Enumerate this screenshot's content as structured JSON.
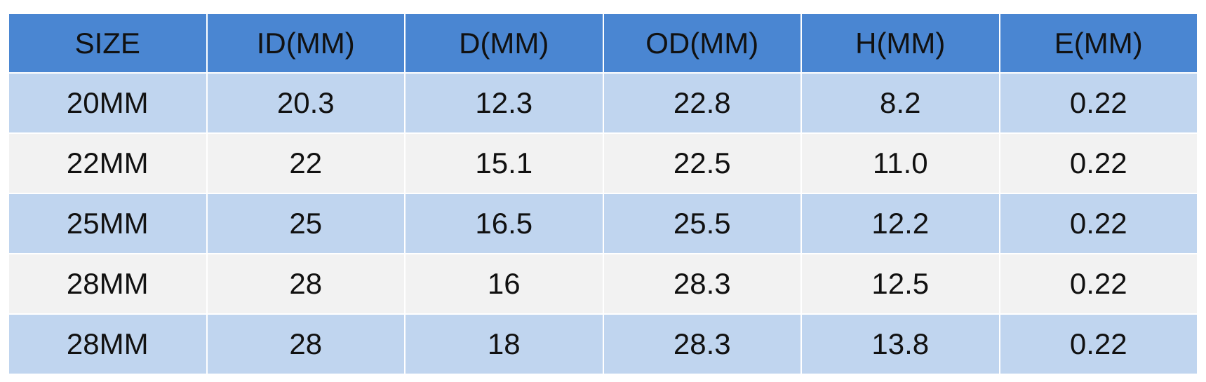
{
  "table": {
    "header": [
      "SIZE",
      "ID(MM)",
      "D(MM)",
      "OD(MM)",
      "H(MM)",
      "E(MM)"
    ],
    "rows": [
      [
        "20MM",
        "20.3",
        "12.3",
        "22.8",
        "8.2",
        "0.22"
      ],
      [
        "22MM",
        "22",
        "15.1",
        "22.5",
        "11.0",
        "0.22"
      ],
      [
        "25MM",
        "25",
        "16.5",
        "25.5",
        "12.2",
        "0.22"
      ],
      [
        "28MM",
        "28",
        "16",
        "28.3",
        "12.5",
        "0.22"
      ],
      [
        "28MM",
        "28",
        "18",
        "28.3",
        "13.8",
        "0.22"
      ]
    ]
  }
}
